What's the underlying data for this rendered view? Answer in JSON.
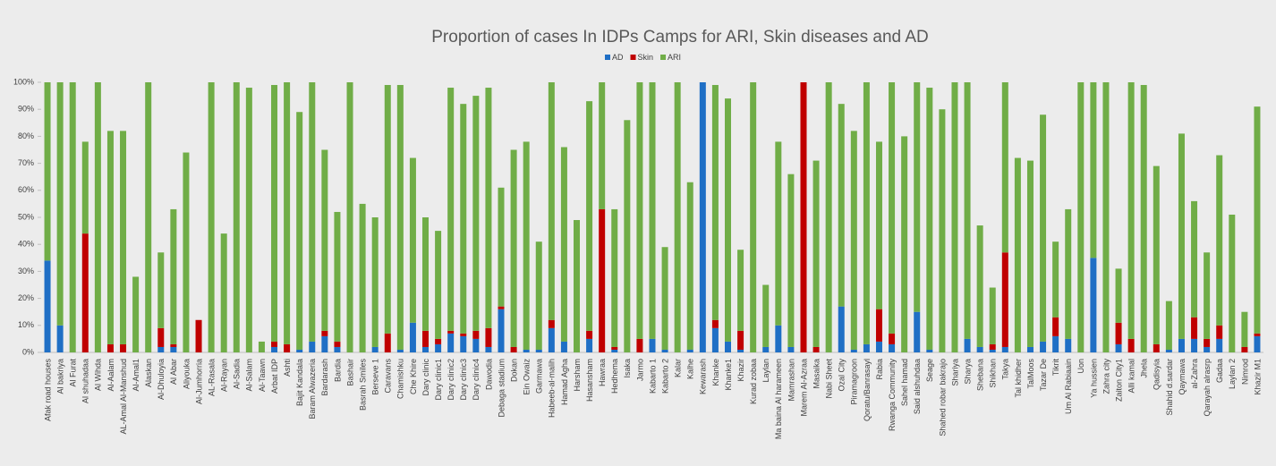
{
  "chart_data": {
    "type": "stacked_bar",
    "title": "Proportion of cases In IDPs Camps for ARI, Skin diseases and AD",
    "categories": [
      "Afak road houses",
      "Al bakriya",
      "Al Furat",
      "Al shuhadaa",
      "Al Wihda",
      "Al-Aalam",
      "AL-Amal Al-Manshud",
      "Al-Amal1",
      "Alaskan",
      "Al-Dhuloyia",
      "Al Abar",
      "Aliyouka",
      "Al-Jumhorria",
      "AL-Rasala",
      "Al-Rayan",
      "Al-Sadia",
      "Al-Salam",
      "Al-Taawn",
      "Arbat IDP",
      "Ashti",
      "Bajit Kandala",
      "Baram Alwazeria",
      "Bardarash",
      "Bardia",
      "Bashair",
      "Basrah Smiles",
      "Berseve 1",
      "Caravans",
      "Chamishku",
      "Che Khire",
      "Dary clinic",
      "Dary clinic1",
      "Dary clinic2",
      "Dary clinic3",
      "Dary clinic4",
      "Dawodia",
      "Debaga stadium",
      "Dokan",
      "Ein Owaiz",
      "Garmawa",
      "Habeeb-al-malih",
      "Hamad Agha",
      "Harsham",
      "Hasansham",
      "Hawraa",
      "Hedhema",
      "Isaka",
      "Jarmo",
      "Kabarto 1",
      "Kabarto 2",
      "Kalar",
      "Kalhe",
      "Kewarash",
      "Khanke",
      "Khanke1",
      "Khazir",
      "Kurad zobaa",
      "Laylan",
      "Ma baina Al harameen",
      "Mamrashan",
      "Marem Al-Azraa",
      "Masaika",
      "Nabi Sheet",
      "Ozal City",
      "Piramagroon",
      "Qoratu/Banrasayl",
      "Rabia",
      "Rwanga Community",
      "Sahel hamad",
      "Said alshuhdaa",
      "Seage",
      "Shahed robar bakrajo",
      "Shariya",
      "Sharya",
      "Shebana",
      "Shikhan",
      "Takya",
      "Tal khidher",
      "TalMoos",
      "Tazar De",
      "Tikrit",
      "Um Al Rabiaain",
      "Uon",
      "Ya hussien",
      "Zahra city",
      "Zaiton City1",
      "Alli kamal",
      "Jhela",
      "Qadisyia",
      "Shahid d.sardar",
      "Qaymawa",
      "al-Zahra",
      "Qarayah alrasrp",
      "Gadaa",
      "Laylan 2",
      "Nimrod",
      "Khazir M1"
    ],
    "series": [
      {
        "name": "AD",
        "color": "#1f6fc5",
        "values": [
          34,
          10,
          0,
          0,
          0,
          0,
          0,
          0,
          0,
          2,
          2,
          0,
          0,
          0,
          0,
          0,
          0,
          0,
          2,
          0,
          1,
          4,
          6,
          2,
          0,
          0,
          2,
          0,
          1,
          11,
          2,
          3,
          7,
          6,
          5,
          2,
          16,
          0,
          1,
          1,
          9,
          4,
          0,
          5,
          0,
          1,
          0,
          0,
          5,
          1,
          0,
          1,
          100,
          9,
          4,
          1,
          0,
          2,
          10,
          2,
          0,
          0,
          0,
          17,
          1,
          3,
          4,
          3,
          0,
          15,
          1,
          0,
          0,
          5,
          2,
          1,
          2,
          0,
          2,
          4,
          6,
          5,
          0,
          35,
          0,
          3,
          0,
          0,
          0,
          1,
          5,
          5,
          2,
          5,
          0,
          0,
          6
        ]
      },
      {
        "name": "Skin",
        "color": "#c00000",
        "values": [
          0,
          0,
          0,
          44,
          0,
          3,
          3,
          0,
          0,
          7,
          1,
          0,
          12,
          0,
          0,
          0,
          0,
          0,
          2,
          3,
          0,
          0,
          2,
          2,
          0,
          0,
          0,
          7,
          0,
          0,
          6,
          2,
          1,
          1,
          3,
          7,
          1,
          2,
          0,
          0,
          3,
          0,
          0,
          3,
          53,
          1,
          0,
          5,
          0,
          0,
          0,
          0,
          0,
          3,
          0,
          7,
          0,
          0,
          0,
          0,
          100,
          2,
          0,
          0,
          0,
          0,
          12,
          4,
          0,
          0,
          0,
          0,
          0,
          0,
          0,
          2,
          35,
          0,
          0,
          0,
          7,
          0,
          0,
          0,
          0,
          8,
          5,
          0,
          3,
          0,
          0,
          8,
          3,
          5,
          0,
          2,
          1
        ]
      },
      {
        "name": "ARI",
        "color": "#70ad47",
        "values": [
          66,
          90,
          100,
          34,
          100,
          79,
          79,
          28,
          100,
          28,
          50,
          74,
          0,
          100,
          44,
          100,
          98,
          4,
          95,
          97,
          88,
          96,
          67,
          48,
          100,
          55,
          48,
          92,
          98,
          61,
          42,
          40,
          90,
          85,
          87,
          89,
          44,
          73,
          77,
          40,
          88,
          72,
          49,
          85,
          47,
          51,
          86,
          95,
          95,
          38,
          100,
          62,
          0,
          87,
          90,
          30,
          100,
          23,
          68,
          64,
          0,
          69,
          100,
          75,
          81,
          97,
          62,
          93,
          80,
          85,
          97,
          90,
          100,
          95,
          45,
          21,
          63,
          72,
          69,
          84,
          28,
          48,
          100,
          65,
          100,
          20,
          95,
          99,
          66,
          18,
          76,
          43,
          32,
          63,
          51,
          13,
          84
        ]
      }
    ],
    "ylim": [
      0,
      100
    ],
    "yticks": [
      {
        "value": 0,
        "label": "0%"
      },
      {
        "value": 10,
        "label": "10%"
      },
      {
        "value": 20,
        "label": "20%"
      },
      {
        "value": 30,
        "label": "30%"
      },
      {
        "value": 40,
        "label": "40%"
      },
      {
        "value": 50,
        "label": "50%"
      },
      {
        "value": 60,
        "label": "60%"
      },
      {
        "value": 70,
        "label": "70%"
      },
      {
        "value": 80,
        "label": "80%"
      },
      {
        "value": 90,
        "label": "90%"
      },
      {
        "value": 100,
        "label": "100%"
      }
    ],
    "grid": false,
    "legend": "top"
  }
}
